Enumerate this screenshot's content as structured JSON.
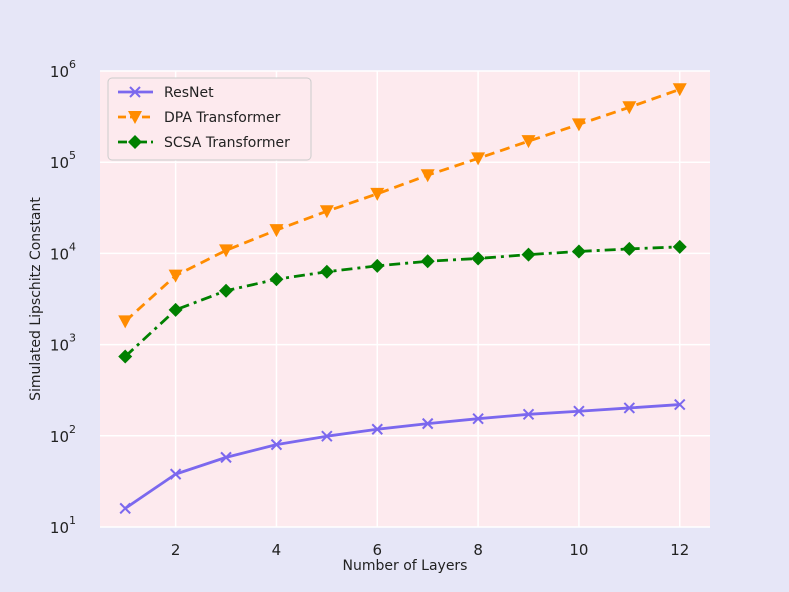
{
  "chart_data": {
    "type": "line",
    "title": "",
    "xlabel": "Number of Layers",
    "ylabel": "Simulated Lipschitz Constant",
    "yscale": "log",
    "xlim": [
      0.5,
      12.6
    ],
    "ylim": [
      10,
      1000000
    ],
    "xticks": [
      2,
      4,
      6,
      8,
      10,
      12
    ],
    "yticks": [
      {
        "value": 10,
        "base": "10",
        "exp": "1"
      },
      {
        "value": 100,
        "base": "10",
        "exp": "2"
      },
      {
        "value": 1000,
        "base": "10",
        "exp": "3"
      },
      {
        "value": 10000,
        "base": "10",
        "exp": "4"
      },
      {
        "value": 100000,
        "base": "10",
        "exp": "5"
      },
      {
        "value": 1000000,
        "base": "10",
        "exp": "6"
      }
    ],
    "grid": true,
    "legend_position": "top-left",
    "plot_background": "#fdeaee",
    "x": [
      1,
      2,
      3,
      4,
      5,
      6,
      7,
      8,
      9,
      10,
      11,
      12
    ],
    "series": [
      {
        "name": "ResNet",
        "color": "#7b68ee",
        "dash": "solid",
        "marker": "x",
        "values": [
          16,
          38,
          58,
          80,
          99,
          118,
          136,
          154,
          172,
          186,
          202,
          220
        ]
      },
      {
        "name": "DPA Transformer",
        "color": "#ff8c00",
        "dash": "dashed",
        "marker": "triangle-down",
        "values": [
          1800,
          5700,
          10800,
          18000,
          29000,
          45000,
          72000,
          110000,
          170000,
          260000,
          400000,
          630000
        ]
      },
      {
        "name": "SCSA Transformer",
        "color": "#008000",
        "dash": "dashdot",
        "marker": "diamond",
        "values": [
          740,
          2400,
          3900,
          5200,
          6300,
          7300,
          8200,
          8800,
          9700,
          10500,
          11200,
          11800
        ]
      }
    ]
  }
}
